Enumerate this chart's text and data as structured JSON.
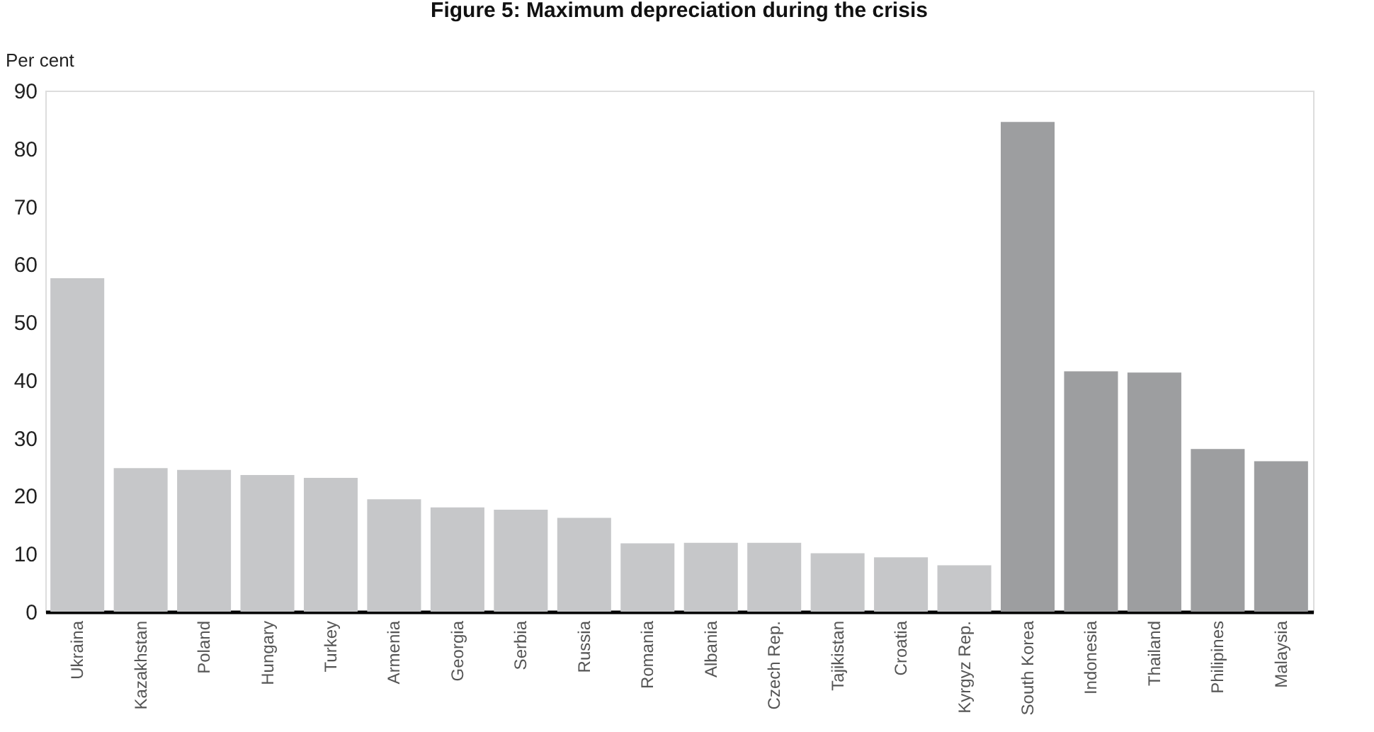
{
  "chart_data": {
    "type": "bar",
    "title": "Figure 5: Maximum depreciation during the crisis",
    "ylabel": "Per cent",
    "categories": [
      "Ukraina",
      "Kazakhstan",
      "Poland",
      "Hungary",
      "Turkey",
      "Armenia",
      "Georgia",
      "Serbia",
      "Russia",
      "Romania",
      "Albania",
      "Czech Rep.",
      "Tajikistan",
      "Croatia",
      "Kyrgyz Rep.",
      "South Korea",
      "Indonesia",
      "Thailand",
      "Philipines",
      "Malaysia"
    ],
    "values": [
      57.6,
      24.8,
      24.5,
      23.6,
      23.1,
      19.4,
      18.0,
      17.6,
      16.2,
      11.8,
      11.9,
      11.9,
      10.1,
      9.4,
      8.0,
      84.6,
      41.5,
      41.3,
      28.1,
      26.0
    ],
    "colors": [
      "#c6c7c9",
      "#c6c7c9",
      "#c6c7c9",
      "#c6c7c9",
      "#c6c7c9",
      "#c6c7c9",
      "#c6c7c9",
      "#c6c7c9",
      "#c6c7c9",
      "#c6c7c9",
      "#c6c7c9",
      "#c6c7c9",
      "#c6c7c9",
      "#c6c7c9",
      "#c6c7c9",
      "#9d9ea0",
      "#9d9ea0",
      "#9d9ea0",
      "#9d9ea0",
      "#9d9ea0"
    ],
    "ylim": [
      0,
      90
    ],
    "yticks": [
      0,
      10,
      20,
      30,
      40,
      50,
      60,
      70,
      80,
      90
    ],
    "grid": false
  }
}
